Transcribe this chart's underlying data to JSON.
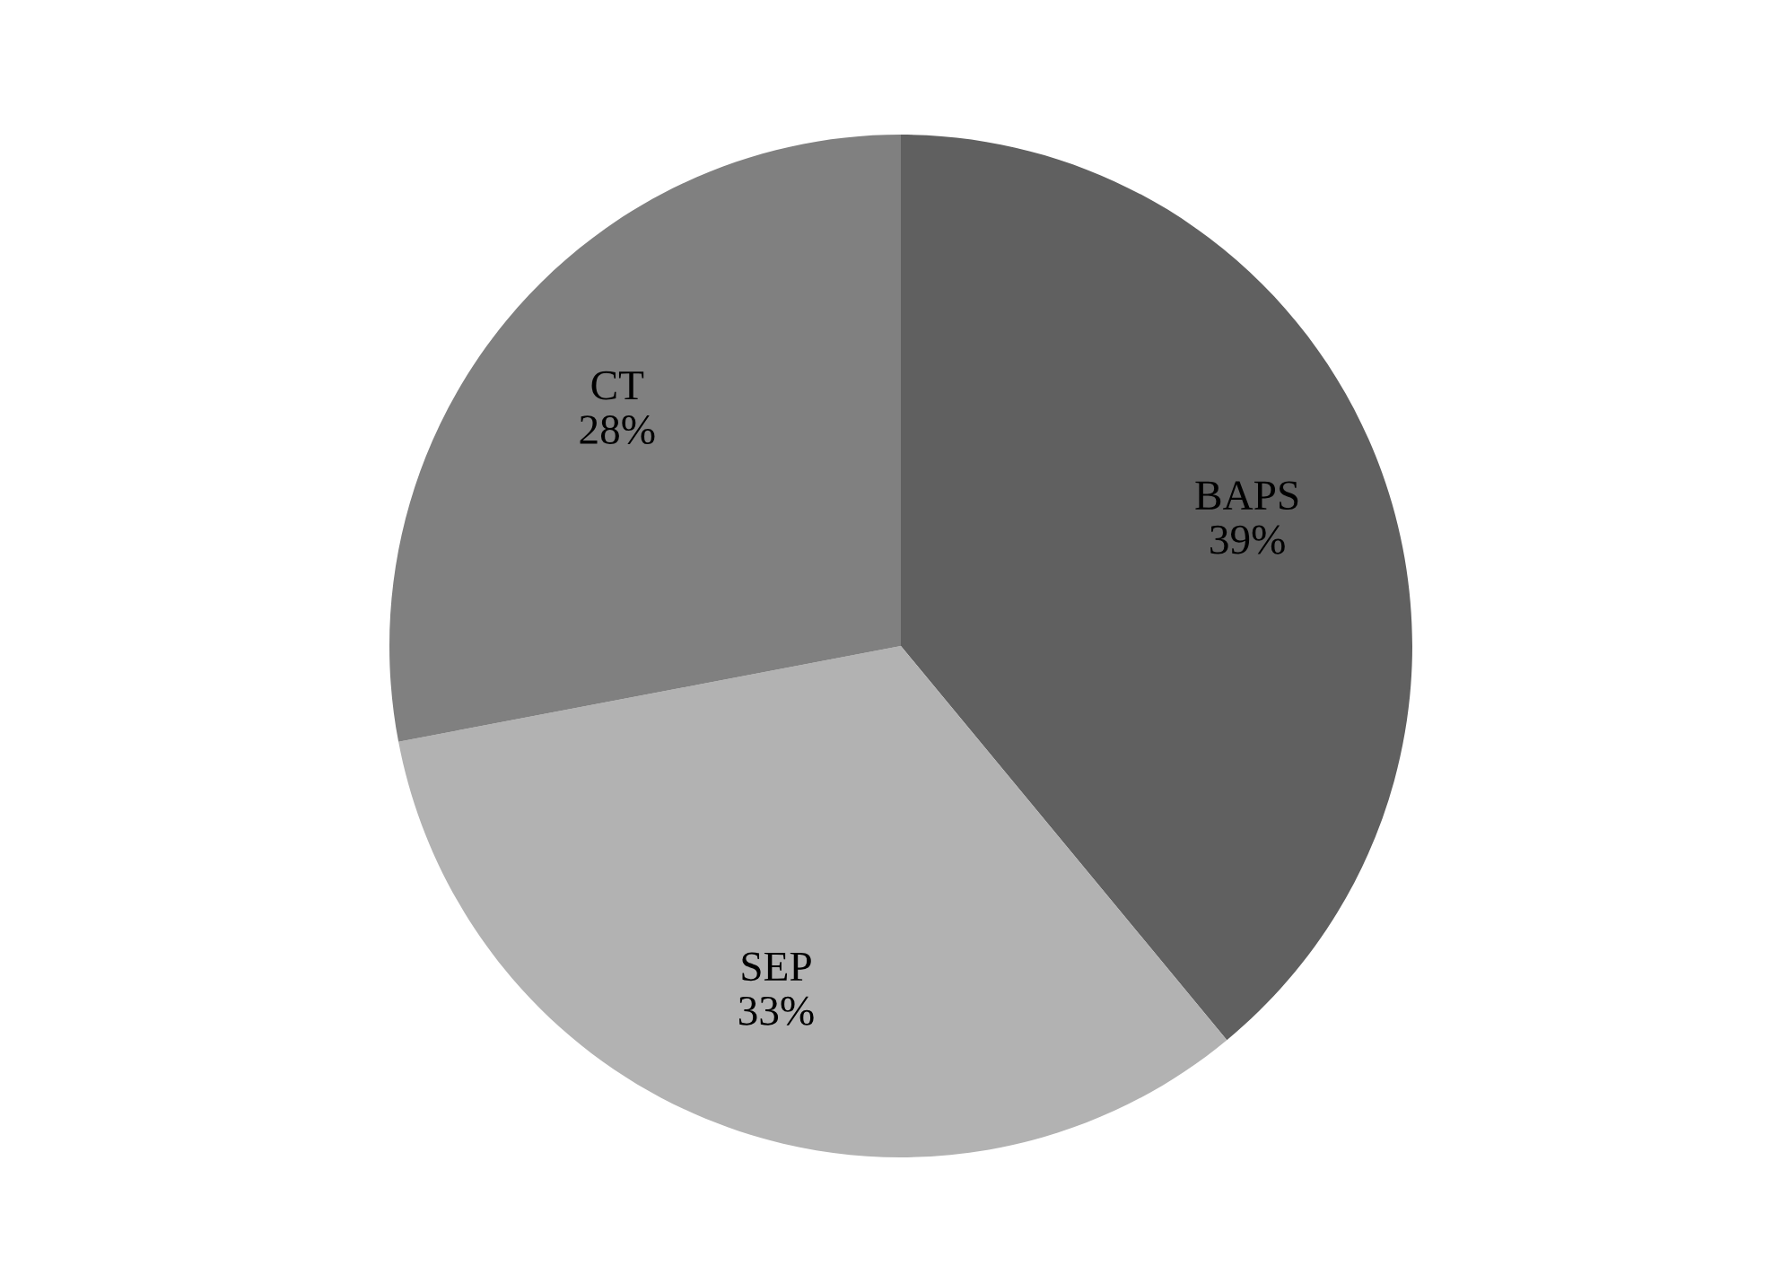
{
  "chart_data": {
    "type": "pie",
    "categories": [
      "BAPS",
      "SEP",
      "CT"
    ],
    "values": [
      39,
      33,
      28
    ],
    "value_labels": [
      "39%",
      "33%",
      "28%"
    ],
    "colors": [
      "#606060",
      "#b2b2b2",
      "#808080"
    ],
    "legend": false
  }
}
